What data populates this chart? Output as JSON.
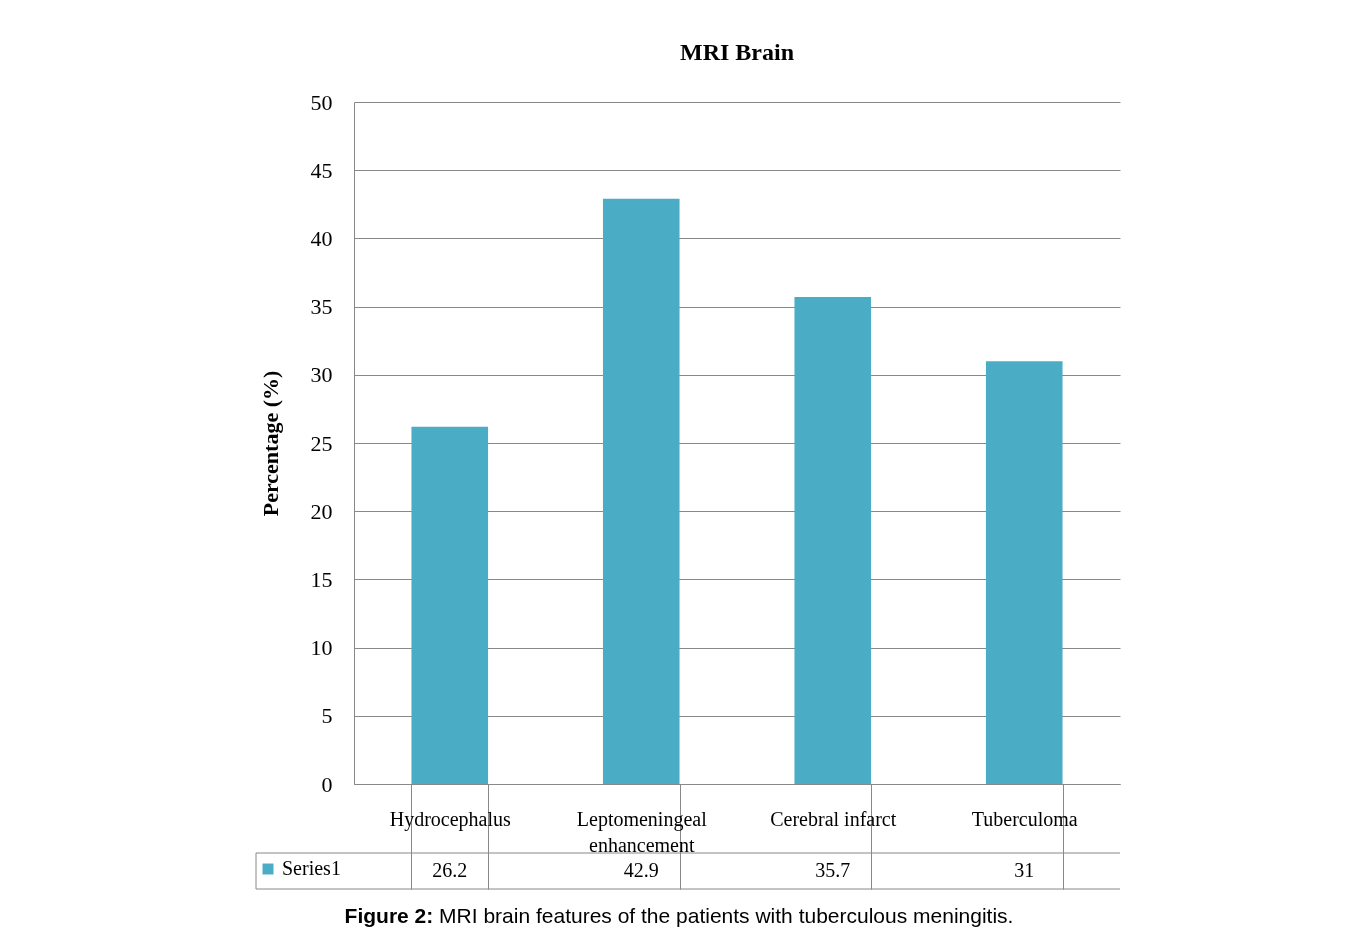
{
  "chart_data": {
    "type": "bar",
    "title": "MRI Brain",
    "ylabel": "Percentage (%)",
    "categories": [
      "Hydrocephalus",
      "Leptomeningeal enhancement",
      "Cerebral infarct",
      "Tuberculoma"
    ],
    "series": [
      {
        "name": "Series1",
        "color": "#4bacc6",
        "values": [
          26.2,
          42.9,
          35.7,
          31
        ]
      }
    ],
    "ylim": [
      0,
      50
    ],
    "yticks": [
      0,
      5,
      10,
      15,
      20,
      25,
      30,
      35,
      40,
      45,
      50
    ],
    "grid": "y",
    "legend": "bottom",
    "data_labels": true,
    "annotations": [
      "Figure 2: MRI brain features of the patients with tuberculous meningitis."
    ]
  }
}
